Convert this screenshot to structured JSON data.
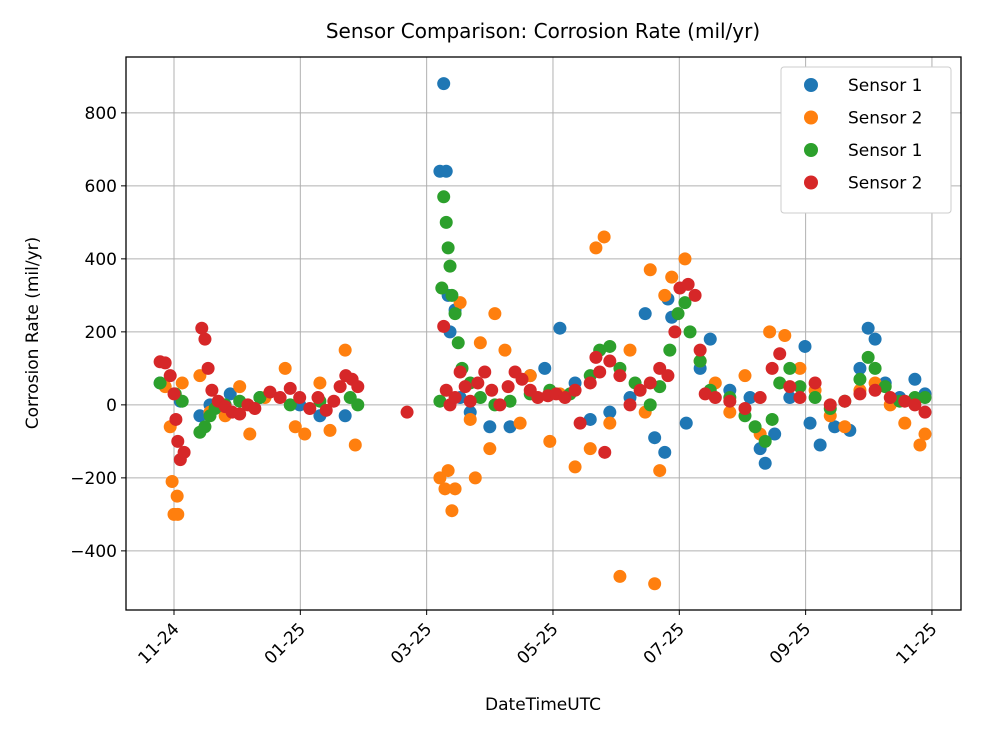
{
  "chart_data": {
    "type": "scatter",
    "title": "Sensor Comparison: Corrosion Rate (mil/yr)",
    "xlabel": "DateTimeUTC",
    "ylabel": "Corrosion Rate (mil/yr)",
    "xlim": [
      -0.76,
      12.46
    ],
    "ylim": [
      -562,
      953
    ],
    "xticks": [
      {
        "value": 0,
        "label": "11-24"
      },
      {
        "value": 2,
        "label": "01-25"
      },
      {
        "value": 4,
        "label": "03-25"
      },
      {
        "value": 6,
        "label": "05-25"
      },
      {
        "value": 8,
        "label": "07-25"
      },
      {
        "value": 10,
        "label": "09-25"
      },
      {
        "value": 12,
        "label": "11-25"
      }
    ],
    "yticks": [
      {
        "value": -400,
        "label": "−400"
      },
      {
        "value": -200,
        "label": "−200"
      },
      0,
      200,
      400,
      600,
      800
    ],
    "grid": true,
    "legend": "upper right",
    "series": [
      {
        "name": "Sensor 1",
        "color": "#1f77b4",
        "x": [
          -0.22,
          0.1,
          0.41,
          0.57,
          0.89,
          1.36,
          1.99,
          2.31,
          2.71,
          4.21,
          4.27,
          4.31,
          4.34,
          4.37,
          4.45,
          4.53,
          4.69,
          5.0,
          5.32,
          5.64,
          5.87,
          6.11,
          6.35,
          6.59,
          6.9,
          7.22,
          7.46,
          7.61,
          7.77,
          7.82,
          7.88,
          8.11,
          8.33,
          8.49,
          8.8,
          9.12,
          9.28,
          9.36,
          9.51,
          9.75,
          9.99,
          10.07,
          10.23,
          10.46,
          10.7,
          10.86,
          10.99,
          11.1,
          11.26,
          11.49,
          11.73,
          11.89
        ],
        "values": [
          60,
          10,
          -30,
          0,
          30,
          20,
          0,
          -30,
          -30,
          640,
          880,
          640,
          300,
          200,
          260,
          20,
          -20,
          -60,
          -60,
          80,
          100,
          210,
          60,
          -40,
          -20,
          20,
          250,
          -90,
          -130,
          290,
          240,
          -50,
          100,
          180,
          40,
          20,
          -120,
          -160,
          -80,
          20,
          160,
          -50,
          -110,
          -60,
          -70,
          100,
          210,
          180,
          60,
          20,
          70,
          30
        ]
      },
      {
        "name": "Sensor 2",
        "color": "#ff7f0e",
        "x": [
          -0.14,
          -0.06,
          -0.03,
          0,
          0.05,
          0.06,
          0.13,
          0.41,
          0.57,
          0.81,
          1.04,
          1.2,
          1.44,
          1.76,
          1.92,
          2.07,
          2.31,
          2.47,
          2.71,
          2.87,
          4.21,
          4.29,
          4.34,
          4.4,
          4.45,
          4.53,
          4.69,
          4.77,
          4.85,
          5.0,
          5.08,
          5.24,
          5.48,
          5.64,
          5.95,
          6.11,
          6.35,
          6.59,
          6.68,
          6.81,
          6.9,
          7.06,
          7.22,
          7.46,
          7.54,
          7.61,
          7.69,
          7.77,
          7.88,
          8.09,
          8.33,
          8.57,
          8.8,
          9.04,
          9.28,
          9.43,
          9.67,
          9.91,
          10.15,
          10.39,
          10.62,
          10.86,
          11.1,
          11.34,
          11.57,
          11.81,
          11.89
        ],
        "values": [
          50,
          -60,
          -210,
          -300,
          -250,
          -300,
          60,
          80,
          -20,
          -30,
          50,
          -80,
          20,
          100,
          -60,
          -80,
          60,
          -70,
          150,
          -110,
          -200,
          -230,
          -180,
          -290,
          -230,
          280,
          -40,
          -200,
          170,
          -120,
          250,
          150,
          -50,
          80,
          -100,
          30,
          -170,
          -120,
          430,
          460,
          -50,
          -470,
          150,
          -20,
          370,
          -490,
          -180,
          300,
          350,
          400,
          120,
          60,
          -20,
          80,
          -80,
          200,
          190,
          100,
          40,
          -30,
          -60,
          40,
          60,
          0,
          -50,
          -110,
          -80
        ]
      },
      {
        "name": "Sensor 1",
        "color": "#2ca02c",
        "x": [
          -0.22,
          0.02,
          0.13,
          0.41,
          0.49,
          0.57,
          0.65,
          0.81,
          1.04,
          1.36,
          1.84,
          2.31,
          2.79,
          2.91,
          4.21,
          4.24,
          4.27,
          4.31,
          4.34,
          4.37,
          4.4,
          4.45,
          4.5,
          4.56,
          4.69,
          4.85,
          5.08,
          5.32,
          5.64,
          5.95,
          6.27,
          6.59,
          6.74,
          6.9,
          7.06,
          7.3,
          7.54,
          7.69,
          7.85,
          7.98,
          8.09,
          8.17,
          8.33,
          8.49,
          8.8,
          9.04,
          9.2,
          9.36,
          9.47,
          9.59,
          9.75,
          9.91,
          10.15,
          10.39,
          10.62,
          10.86,
          10.99,
          11.1,
          11.26,
          11.49,
          11.73,
          11.89
        ],
        "values": [
          60,
          30,
          10,
          -75,
          -60,
          -30,
          -10,
          0,
          10,
          20,
          0,
          10,
          20,
          0,
          10,
          320,
          570,
          500,
          430,
          380,
          300,
          250,
          170,
          100,
          60,
          20,
          0,
          10,
          30,
          40,
          30,
          80,
          150,
          160,
          100,
          60,
          0,
          50,
          150,
          250,
          280,
          200,
          120,
          40,
          20,
          -30,
          -60,
          -100,
          -40,
          60,
          100,
          50,
          20,
          -10,
          10,
          70,
          130,
          100,
          50,
          10,
          20,
          20
        ]
      },
      {
        "name": "Sensor 2",
        "color": "#d62728",
        "x": [
          -0.22,
          -0.14,
          -0.06,
          0,
          0.03,
          0.06,
          0.1,
          0.16,
          0.44,
          0.49,
          0.54,
          0.6,
          0.7,
          0.81,
          0.92,
          1.04,
          1.17,
          1.28,
          1.52,
          1.68,
          1.84,
          1.99,
          2.15,
          2.28,
          2.41,
          2.53,
          2.63,
          2.72,
          2.82,
          2.91,
          3.69,
          4.27,
          4.31,
          4.37,
          4.45,
          4.53,
          4.61,
          4.69,
          4.81,
          4.92,
          5.03,
          5.16,
          5.29,
          5.4,
          5.51,
          5.64,
          5.76,
          5.92,
          6.05,
          6.19,
          6.35,
          6.43,
          6.59,
          6.68,
          6.74,
          6.82,
          6.9,
          7.06,
          7.22,
          7.38,
          7.54,
          7.69,
          7.82,
          7.93,
          8.01,
          8.14,
          8.25,
          8.33,
          8.41,
          8.57,
          8.8,
          9.04,
          9.28,
          9.47,
          9.59,
          9.75,
          9.91,
          10.15,
          10.39,
          10.62,
          10.86,
          11.1,
          11.34,
          11.57,
          11.73,
          11.89
        ],
        "values": [
          118,
          115,
          80,
          30,
          -40,
          -100,
          -150,
          -130,
          210,
          180,
          100,
          40,
          10,
          -5,
          -20,
          -25,
          0,
          -10,
          35,
          20,
          45,
          20,
          -10,
          20,
          -15,
          10,
          50,
          80,
          70,
          50,
          -20,
          215,
          40,
          0,
          20,
          90,
          50,
          10,
          60,
          90,
          40,
          0,
          50,
          90,
          70,
          40,
          20,
          25,
          30,
          20,
          40,
          -50,
          60,
          130,
          90,
          -130,
          120,
          80,
          0,
          40,
          60,
          100,
          80,
          200,
          320,
          330,
          300,
          150,
          30,
          20,
          10,
          -10,
          20,
          100,
          140,
          50,
          20,
          60,
          0,
          10,
          30,
          40,
          20,
          10,
          0,
          -20
        ]
      }
    ]
  }
}
